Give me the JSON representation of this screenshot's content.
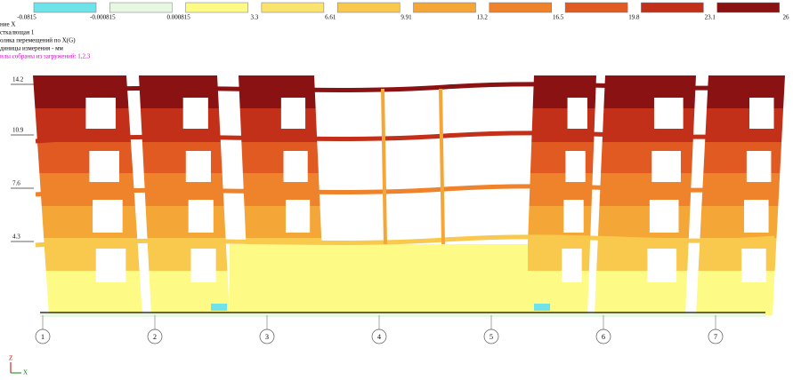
{
  "legend": {
    "labels": [
      "-0.0815",
      "-0.000815",
      "0.000815",
      "3.3",
      "6.61",
      "9.91",
      "13.2",
      "16.5",
      "19.8",
      "23.1",
      "26"
    ],
    "colors": [
      "#6fe3ea",
      "#e6f7e2",
      "#fdfa86",
      "#fbe46e",
      "#f8c94c",
      "#f4a637",
      "#ee832c",
      "#e05a22",
      "#c2301a",
      "#8a1212"
    ]
  },
  "info": {
    "lines": [
      "ние X",
      "сткалющая 1",
      "оляка перемещений по X(G)",
      "диницы измерения - мм"
    ],
    "load_cases": "илы собраны из загружений: 1,2,3"
  },
  "levels": [
    "14.2",
    "10.9",
    "7.6",
    "4.3"
  ],
  "axes": [
    "1",
    "2",
    "3",
    "4",
    "5",
    "6",
    "7"
  ],
  "triad": {
    "z": "Z",
    "x": "X"
  }
}
